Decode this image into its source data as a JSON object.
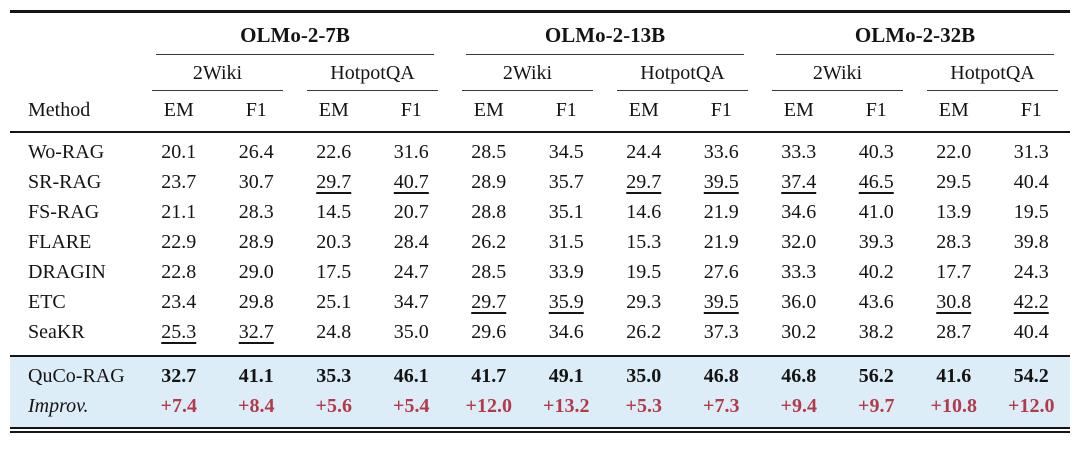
{
  "table": {
    "method_header": "Method",
    "metric_labels": [
      "EM",
      "F1"
    ],
    "model_groups": [
      {
        "label": "OLMo-2-7B",
        "datasets": [
          "2Wiki",
          "HotpotQA"
        ]
      },
      {
        "label": "OLMo-2-13B",
        "datasets": [
          "2Wiki",
          "HotpotQA"
        ]
      },
      {
        "label": "OLMo-2-32B",
        "datasets": [
          "2Wiki",
          "HotpotQA"
        ]
      }
    ],
    "rows": [
      {
        "method": "Wo-RAG",
        "values": [
          "20.1",
          "26.4",
          "22.6",
          "31.6",
          "28.5",
          "34.5",
          "24.4",
          "33.6",
          "33.3",
          "40.3",
          "22.0",
          "31.3"
        ],
        "underlined": []
      },
      {
        "method": "SR-RAG",
        "values": [
          "23.7",
          "30.7",
          "29.7",
          "40.7",
          "28.9",
          "35.7",
          "29.7",
          "39.5",
          "37.4",
          "46.5",
          "29.5",
          "40.4"
        ],
        "underlined": [
          2,
          3,
          6,
          7,
          8,
          9
        ]
      },
      {
        "method": "FS-RAG",
        "values": [
          "21.1",
          "28.3",
          "14.5",
          "20.7",
          "28.8",
          "35.1",
          "14.6",
          "21.9",
          "34.6",
          "41.0",
          "13.9",
          "19.5"
        ],
        "underlined": []
      },
      {
        "method": "FLARE",
        "values": [
          "22.9",
          "28.9",
          "20.3",
          "28.4",
          "26.2",
          "31.5",
          "15.3",
          "21.9",
          "32.0",
          "39.3",
          "28.3",
          "39.8"
        ],
        "underlined": []
      },
      {
        "method": "DRAGIN",
        "values": [
          "22.8",
          "29.0",
          "17.5",
          "24.7",
          "28.5",
          "33.9",
          "19.5",
          "27.6",
          "33.3",
          "40.2",
          "17.7",
          "24.3"
        ],
        "underlined": []
      },
      {
        "method": "ETC",
        "values": [
          "23.4",
          "29.8",
          "25.1",
          "34.7",
          "29.7",
          "35.9",
          "29.3",
          "39.5",
          "36.0",
          "43.6",
          "30.8",
          "42.2"
        ],
        "underlined": [
          4,
          5,
          7,
          10,
          11
        ]
      },
      {
        "method": "SeaKR",
        "values": [
          "25.3",
          "32.7",
          "24.8",
          "35.0",
          "29.6",
          "34.6",
          "26.2",
          "37.3",
          "30.2",
          "38.2",
          "28.7",
          "40.4"
        ],
        "underlined": [
          0,
          1
        ]
      }
    ],
    "highlight": {
      "background": "#ddedf7",
      "rows": [
        {
          "method": "QuCo-RAG",
          "values": [
            "32.7",
            "41.1",
            "35.3",
            "46.1",
            "41.7",
            "49.1",
            "35.0",
            "46.8",
            "46.8",
            "56.2",
            "41.6",
            "54.2"
          ],
          "style": "best"
        },
        {
          "method": "Improv.",
          "values": [
            "+7.4",
            "+8.4",
            "+5.6",
            "+5.4",
            "+12.0",
            "+13.2",
            "+5.3",
            "+7.3",
            "+9.4",
            "+9.7",
            "+10.8",
            "+12.0"
          ],
          "style": "improv",
          "color": "#b23a4a"
        }
      ]
    }
  }
}
